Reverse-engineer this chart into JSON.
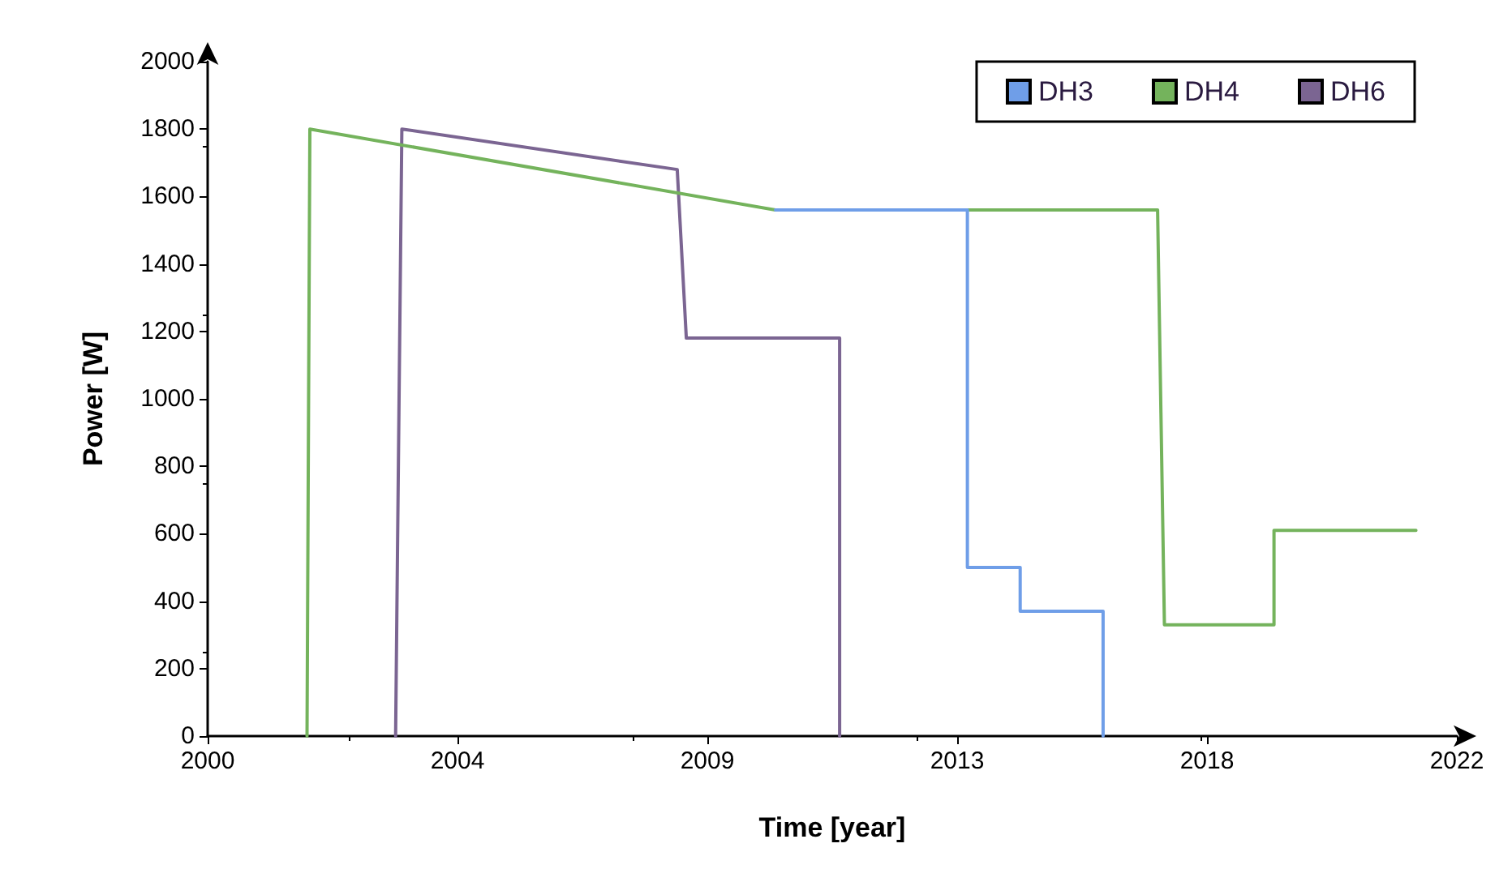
{
  "chart_data": {
    "type": "line",
    "xlabel": "Time [year]",
    "ylabel": "Power [W]",
    "xlim": [
      2000,
      2022
    ],
    "xticks": [
      {
        "value": 2000,
        "label": "2000"
      },
      {
        "value": 2004.4,
        "label": "2004"
      },
      {
        "value": 2008.8,
        "label": "2009"
      },
      {
        "value": 2013.2,
        "label": "2013"
      },
      {
        "value": 2017.6,
        "label": "2018"
      },
      {
        "value": 2022,
        "label": "2022"
      }
    ],
    "ylim": [
      0,
      2000
    ],
    "yticks": [
      0,
      200,
      400,
      600,
      800,
      1000,
      1200,
      1400,
      1600,
      1800,
      2000
    ],
    "grid": false,
    "legend": "top right",
    "marker": "none",
    "line_style": "solid",
    "series": [
      {
        "name": "DH3",
        "color": "#6f9ee8",
        "x": [
          2010.0,
          2013.38,
          2013.38,
          2014.31,
          2014.31,
          2015.77,
          2015.77
        ],
        "values": [
          1560,
          1560,
          500,
          500,
          370,
          370,
          0
        ]
      },
      {
        "name": "DH4",
        "color": "#74b35c",
        "x": [
          2001.75,
          2001.8,
          2010.0,
          2016.73,
          2016.85,
          2018.78,
          2018.78,
          2021.28
        ],
        "values": [
          0,
          1800,
          1560,
          1560,
          330,
          330,
          610,
          610
        ]
      },
      {
        "name": "DH6",
        "color": "#7b6592",
        "x": [
          2003.31,
          2003.42,
          2008.27,
          2008.43,
          2011.13,
          2011.13
        ],
        "values": [
          0,
          1800,
          1680,
          1180,
          1180,
          0
        ]
      }
    ]
  }
}
